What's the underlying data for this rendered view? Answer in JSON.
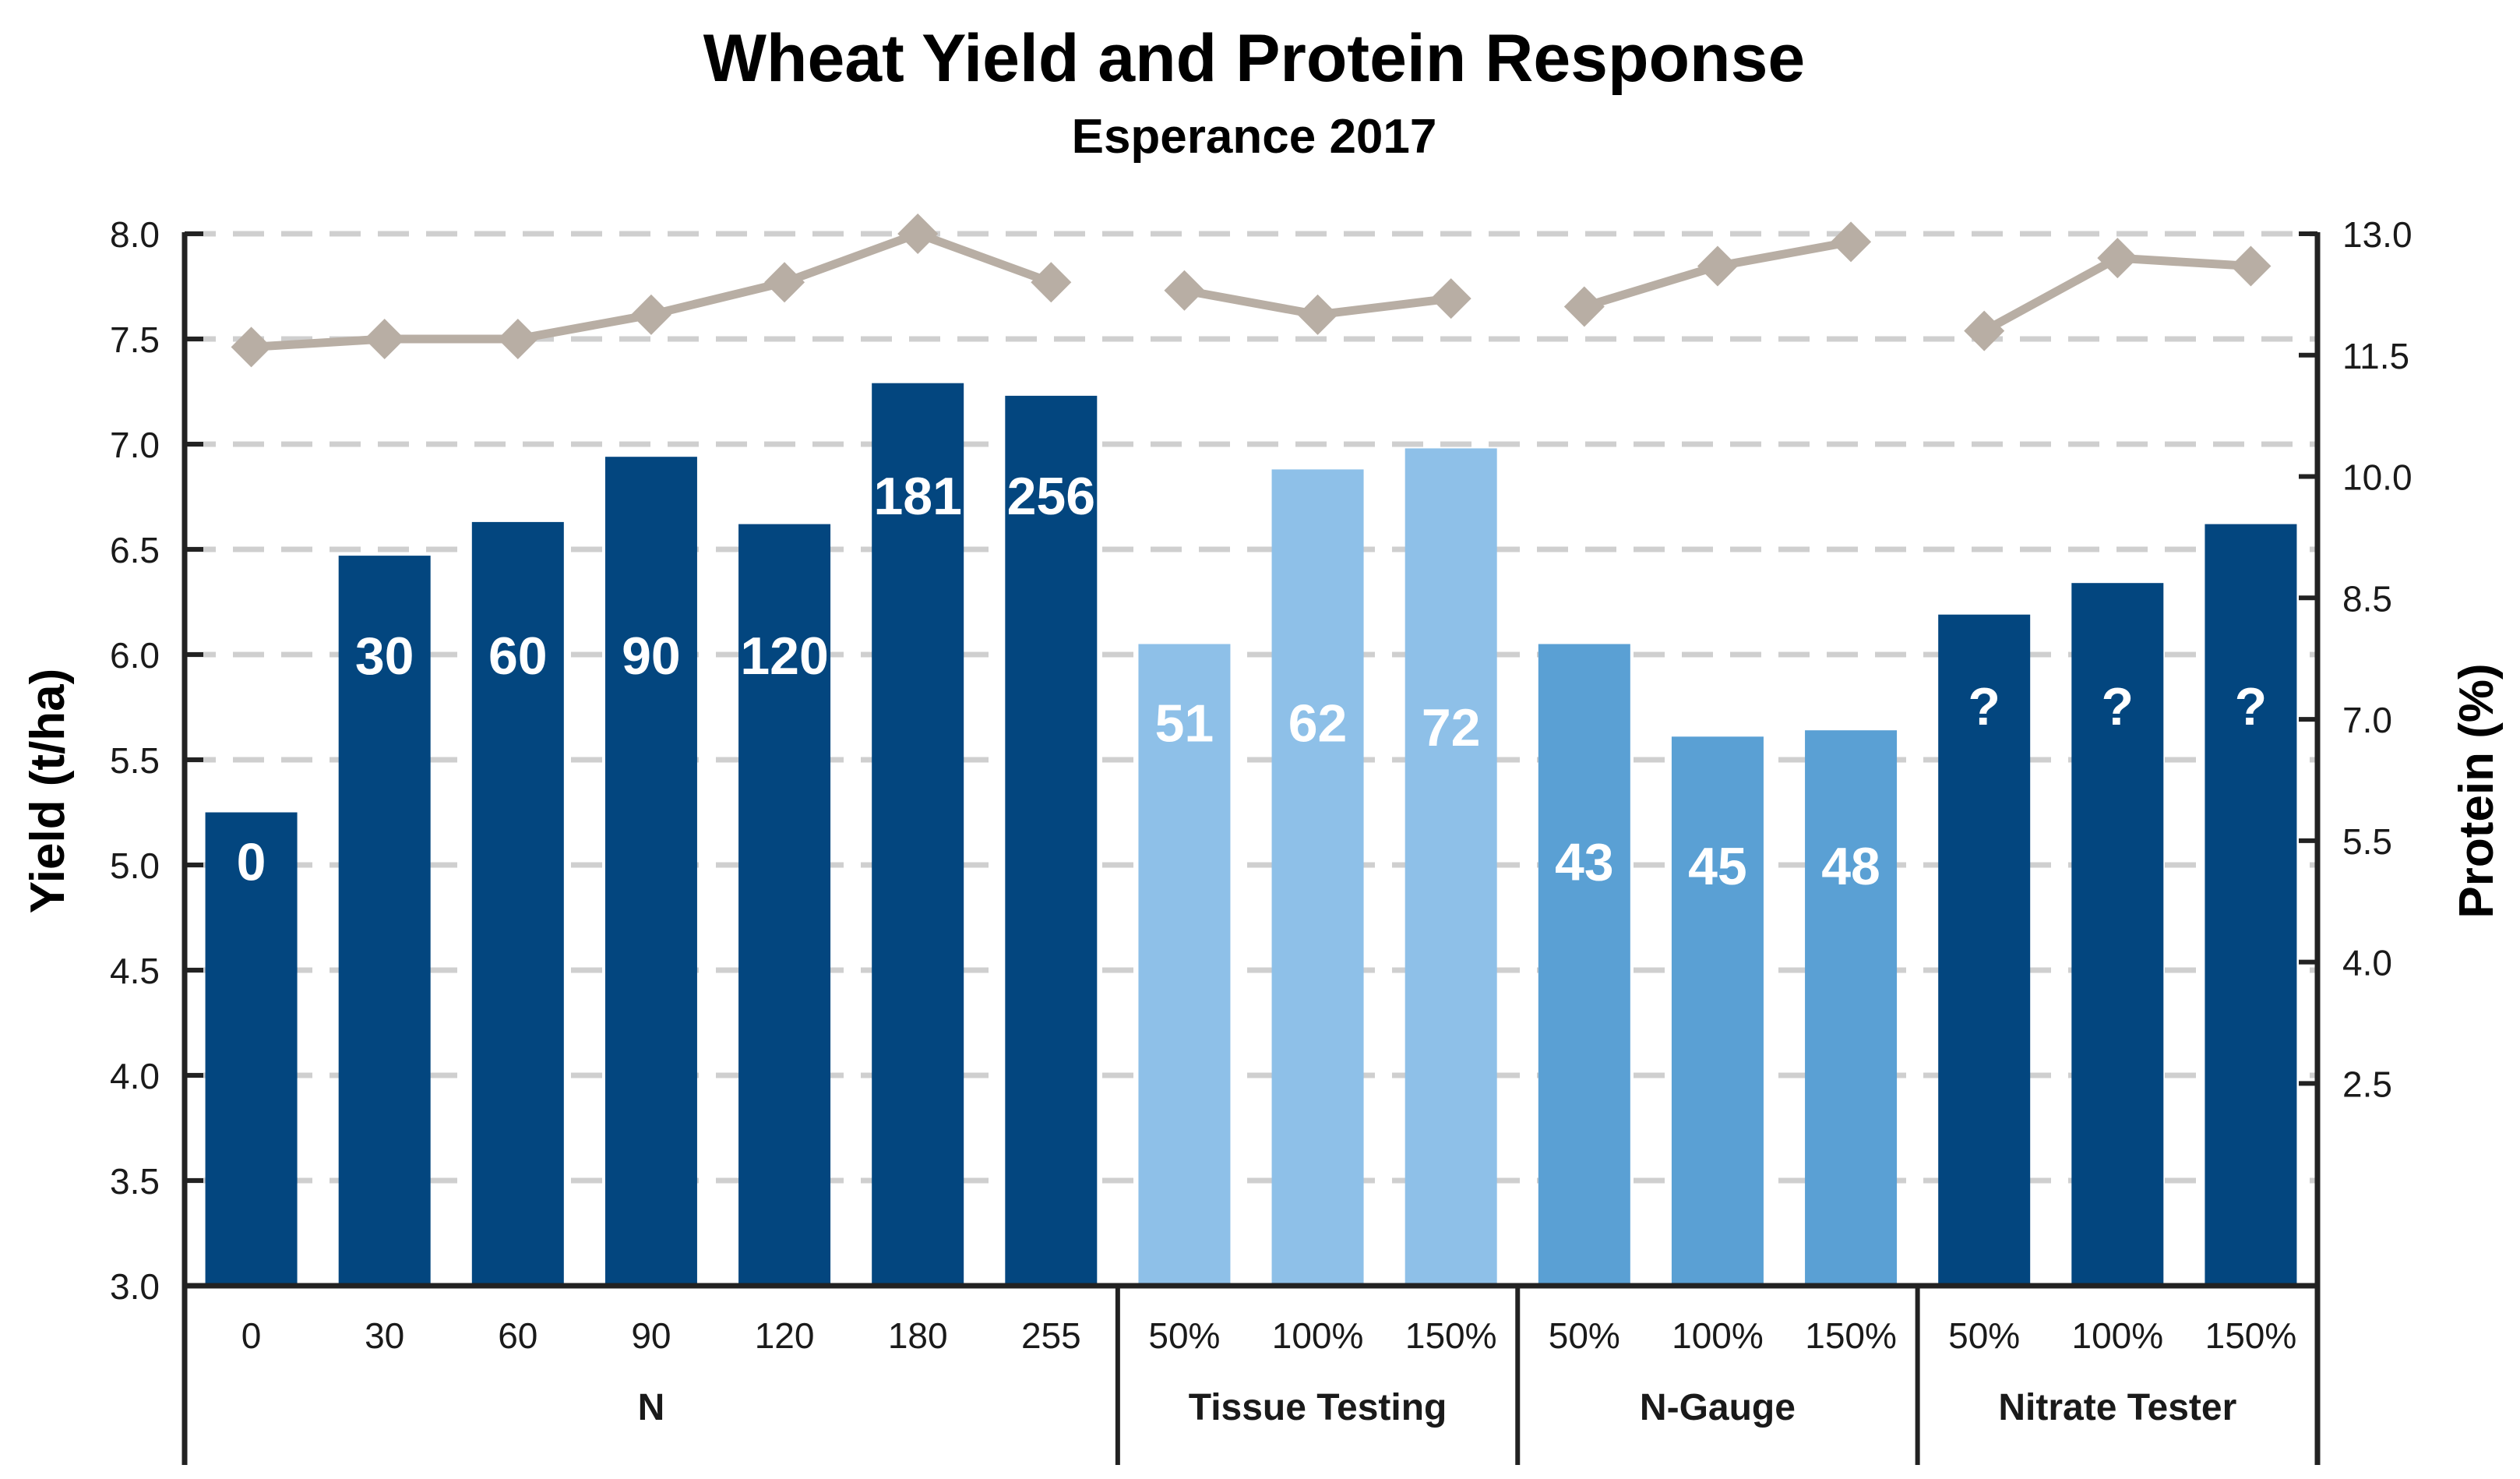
{
  "chart_data": {
    "type": "bar",
    "title": "Wheat Yield and Protein Response",
    "subtitle": "Esperance 2017",
    "ylabel": "Yield (t/ha)",
    "y2label": "Protein (%)",
    "ylim": [
      3.0,
      8.0
    ],
    "y2lim": [
      0,
      13.0
    ],
    "yticks": [
      "3.0",
      "3.5",
      "4.0",
      "4.5",
      "5.0",
      "5.5",
      "6.0",
      "6.5",
      "7.0",
      "7.5",
      "8.0"
    ],
    "y2ticks": [
      "2.5",
      "4.0",
      "5.5",
      "7.0",
      "8.5",
      "10.0",
      "11.5",
      "13.0"
    ],
    "grid": true,
    "categories": [
      "0",
      "30",
      "60",
      "90",
      "120",
      "180",
      "255",
      "50%",
      "100%",
      "150%",
      "50%",
      "100%",
      "150%",
      "50%",
      "100%",
      "150%"
    ],
    "groups": [
      {
        "name": "N",
        "count": 7
      },
      {
        "name": "Tissue Testing",
        "count": 3
      },
      {
        "name": "N-Gauge",
        "count": 3
      },
      {
        "name": "Nitrate Tester",
        "count": 3
      }
    ],
    "series": [
      {
        "type": "bar",
        "values": [
          5.25,
          6.47,
          6.63,
          6.94,
          6.62,
          7.29,
          7.23,
          6.05,
          6.88,
          6.98,
          6.05,
          5.61,
          5.64,
          6.19,
          6.34,
          6.62
        ],
        "colors": [
          "#03467f",
          "#03467f",
          "#03467f",
          "#03467f",
          "#03467f",
          "#03467f",
          "#03467f",
          "#8ec0e8",
          "#8ec0e8",
          "#8ec0e8",
          "#5aa0d4",
          "#5aa0d4",
          "#5aa0d4",
          "#03467f",
          "#03467f",
          "#03467f"
        ],
        "labels": [
          "0",
          "30",
          "60",
          "90",
          "120",
          "181",
          "256",
          "51",
          "62",
          "72",
          "43",
          "45",
          "48",
          "?",
          "?",
          "?"
        ]
      },
      {
        "type": "line",
        "axis": "right",
        "color": "#b8aea4",
        "segments": [
          {
            "start": 0,
            "values": [
              11.6,
              11.7,
              11.7,
              12.0,
              12.4,
              13.0,
              12.4
            ]
          },
          {
            "start": 7,
            "values": [
              12.3,
              12.0,
              12.2
            ]
          },
          {
            "start": 10,
            "values": [
              12.1,
              12.6,
              12.9
            ]
          },
          {
            "start": 13,
            "values": [
              11.8,
              12.7,
              12.6
            ]
          }
        ]
      }
    ]
  }
}
